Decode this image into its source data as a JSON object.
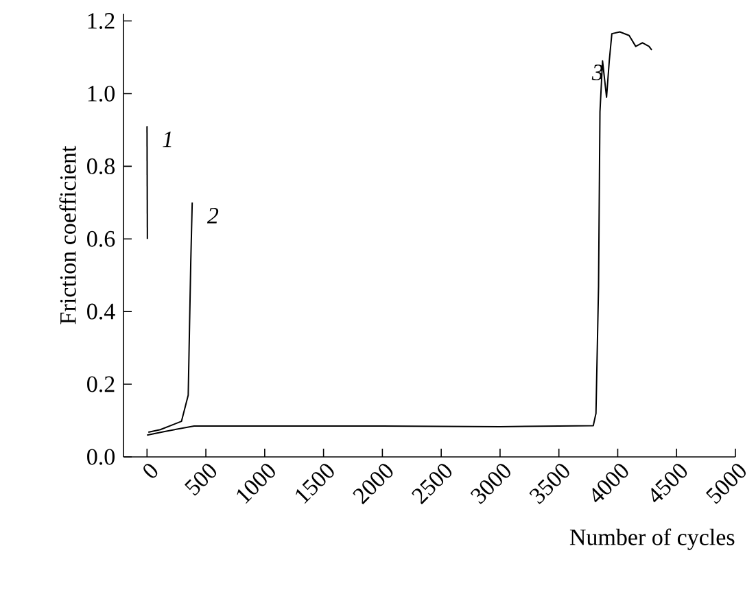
{
  "chart_data": {
    "type": "line",
    "xlabel": "Number of cycles",
    "ylabel": "Friction coefficient",
    "xlim": [
      -200,
      5000
    ],
    "ylim": [
      0,
      1.22
    ],
    "xticks": [
      0,
      500,
      1000,
      1500,
      2000,
      2500,
      3000,
      3500,
      4000,
      4500,
      5000
    ],
    "yticks": [
      {
        "value": 0,
        "label": "0.0"
      },
      {
        "value": 0.2,
        "label": "0.2"
      },
      {
        "value": 0.4,
        "label": "0.4"
      },
      {
        "value": 0.6,
        "label": "0.6"
      },
      {
        "value": 0.8,
        "label": "0.8"
      },
      {
        "value": 1.0,
        "label": "1.0"
      },
      {
        "value": 1.2,
        "label": "1.2"
      }
    ],
    "marker": "none",
    "line_style": "solid",
    "series": [
      {
        "color": "#000000",
        "x": [
          0,
          3
        ],
        "values": [
          0.91,
          0.6
        ]
      },
      {
        "color": "#000000",
        "x": [
          11,
          113,
          293,
          350,
          372,
          384
        ],
        "values": [
          0.068,
          0.075,
          0.098,
          0.17,
          0.54,
          0.7
        ]
      },
      {
        "color": "#000000",
        "x": [
          0,
          150,
          400,
          1000,
          2000,
          3000,
          3500,
          3792,
          3815,
          3837,
          3849,
          3871,
          3905,
          3928,
          3950,
          4018,
          4097,
          4153,
          4210,
          4266,
          4289
        ],
        "values": [
          0.06,
          0.07,
          0.085,
          0.085,
          0.085,
          0.083,
          0.085,
          0.086,
          0.12,
          0.47,
          0.95,
          1.09,
          0.99,
          1.09,
          1.165,
          1.17,
          1.16,
          1.13,
          1.14,
          1.13,
          1.12
        ]
      }
    ],
    "annotations": [
      "1",
      "2",
      "3"
    ]
  }
}
